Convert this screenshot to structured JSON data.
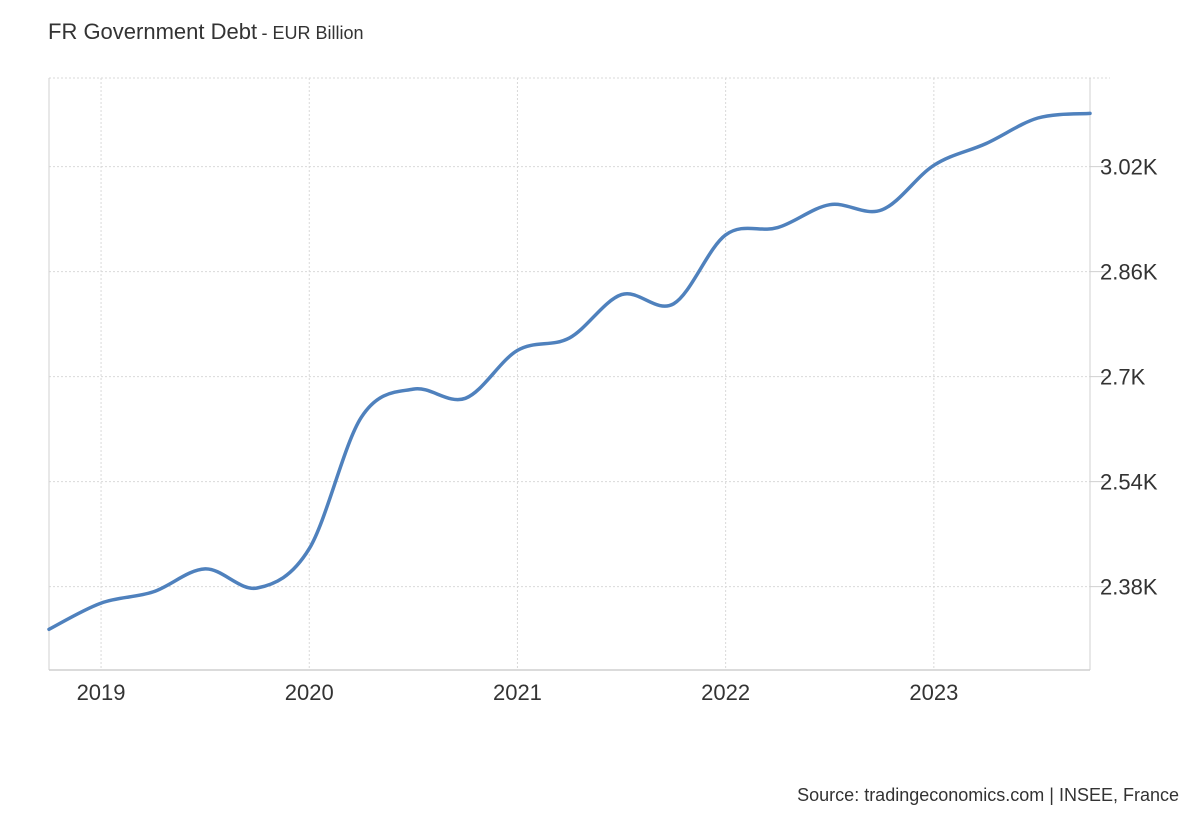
{
  "chart_data": {
    "type": "line",
    "title": "FR Government Debt",
    "subtitle": "- EUR Billion",
    "source": "Source: tradingeconomics.com | INSEE, France",
    "xlabel": "",
    "ylabel": "",
    "x_ticks": [
      "2019",
      "2020",
      "2021",
      "2022",
      "2023"
    ],
    "x_tick_values": [
      2019.0,
      2020.0,
      2021.0,
      2022.0,
      2023.0
    ],
    "y_ticks": [
      "2.38K",
      "2.54K",
      "2.7K",
      "2.86K",
      "3.02K"
    ],
    "y_tick_values": [
      2380,
      2540,
      2700,
      2860,
      3020
    ],
    "xlim": [
      2018.75,
      2023.75
    ],
    "ylim": [
      2253,
      3155
    ],
    "grid": true,
    "y_axis_position": "right",
    "series": [
      {
        "name": "FR Government Debt",
        "color": "#4f81bd",
        "x": [
          2018.75,
          2019.0,
          2019.25,
          2019.5,
          2019.75,
          2020.0,
          2020.25,
          2020.5,
          2020.75,
          2021.0,
          2021.25,
          2021.5,
          2021.75,
          2022.0,
          2022.25,
          2022.5,
          2022.75,
          2023.0,
          2023.25,
          2023.5,
          2023.75
        ],
        "values": [
          2315,
          2355,
          2372,
          2407,
          2378,
          2438,
          2638,
          2681,
          2667,
          2740,
          2759,
          2825,
          2811,
          2916,
          2927,
          2962,
          2954,
          3022,
          3055,
          3094,
          3101
        ]
      }
    ]
  }
}
